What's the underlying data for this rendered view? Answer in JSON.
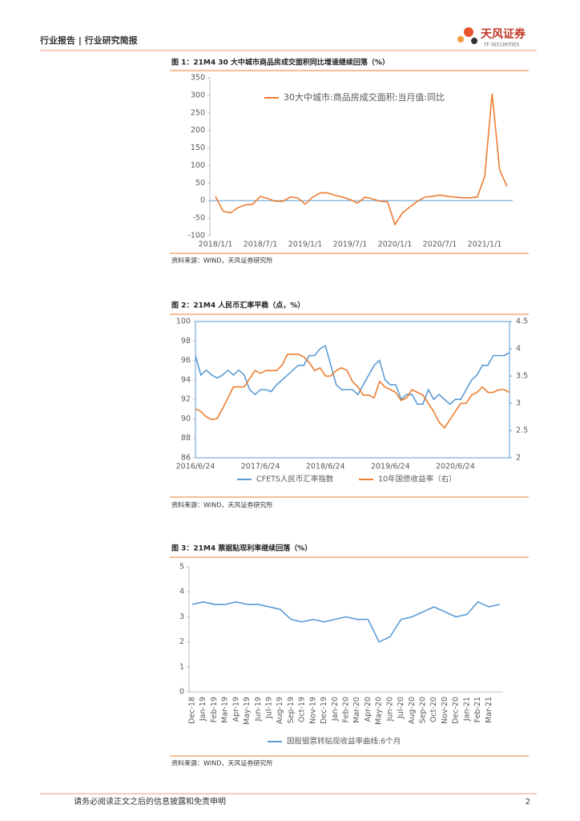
{
  "header": {
    "section": "行业报告 | 行业研究简报",
    "logo": "天风证券",
    "logo_en": "TF SECURITIES"
  },
  "footer": {
    "disclaimer": "请务必阅读正文之后的信息披露和免责申明",
    "page": "2"
  },
  "chart_data": [
    {
      "type": "line",
      "title": "图 1：21M4 30 大中城市商品房成交面积同比增速继续回落（%）",
      "source": "资料来源：WIND，天风证券研究所",
      "x": [
        "2018/1/1",
        "2018/2/1",
        "2018/3/1",
        "2018/4/1",
        "2018/5/1",
        "2018/6/1",
        "2018/7/1",
        "2018/8/1",
        "2018/9/1",
        "2018/10/1",
        "2018/11/1",
        "2018/12/1",
        "2019/1/1",
        "2019/2/1",
        "2019/3/1",
        "2019/4/1",
        "2019/5/1",
        "2019/6/1",
        "2019/7/1",
        "2019/8/1",
        "2019/9/1",
        "2019/10/1",
        "2019/11/1",
        "2019/12/1",
        "2020/1/1",
        "2020/2/1",
        "2020/3/1",
        "2020/4/1",
        "2020/5/1",
        "2020/6/1",
        "2020/7/1",
        "2020/8/1",
        "2020/9/1",
        "2020/10/1",
        "2020/11/1",
        "2020/12/1",
        "2021/1/1",
        "2021/2/1",
        "2021/3/1",
        "2021/4/1"
      ],
      "xticks": [
        "2018/1/1",
        "2018/7/1",
        "2019/1/1",
        "2019/7/1",
        "2020/1/1",
        "2020/7/1",
        "2021/1/1"
      ],
      "series": [
        {
          "name": "30大中城市:商品房成交面积:当月值:同比",
          "color": "#ed7d31",
          "values": [
            12,
            -30,
            -35,
            -20,
            -12,
            -10,
            12,
            6,
            -2,
            -2,
            10,
            8,
            -10,
            10,
            22,
            22,
            15,
            10,
            3,
            -7,
            10,
            5,
            -2,
            -3,
            -68,
            -35,
            -18,
            -2,
            10,
            12,
            16,
            12,
            10,
            8,
            8,
            10,
            68,
            305,
            88,
            40
          ]
        }
      ],
      "ylim": [
        -100,
        350
      ],
      "yticks": [
        -100,
        -50,
        0,
        50,
        100,
        150,
        200,
        250,
        300,
        350
      ],
      "legend": "top"
    },
    {
      "type": "line",
      "title": "图 2：21M4 人民币汇率平稳（点，%）",
      "source": "资料来源：WIND，天风证券研究所",
      "x": [
        "2016/6/24",
        "2016/7/24",
        "2016/8/24",
        "2016/9/24",
        "2016/10/24",
        "2016/11/24",
        "2016/12/24",
        "2017/1/24",
        "2017/2/24",
        "2017/3/24",
        "2017/4/24",
        "2017/5/24",
        "2017/6/24",
        "2017/7/24",
        "2017/8/24",
        "2017/9/24",
        "2017/10/24",
        "2017/11/24",
        "2017/12/24",
        "2018/1/24",
        "2018/2/24",
        "2018/3/24",
        "2018/4/24",
        "2018/5/24",
        "2018/6/24",
        "2018/7/24",
        "2018/8/24",
        "2018/9/24",
        "2018/10/24",
        "2018/11/24",
        "2018/12/24",
        "2019/1/24",
        "2019/2/24",
        "2019/3/24",
        "2019/4/24",
        "2019/5/24",
        "2019/6/24",
        "2019/7/24",
        "2019/8/24",
        "2019/9/24",
        "2019/10/24",
        "2019/11/24",
        "2019/12/24",
        "2020/1/24",
        "2020/2/24",
        "2020/3/24",
        "2020/4/24",
        "2020/5/24",
        "2020/6/24",
        "2020/7/24",
        "2020/8/24",
        "2020/9/24",
        "2020/10/24",
        "2020/11/24",
        "2020/12/24",
        "2021/1/24",
        "2021/2/24",
        "2021/3/24",
        "2021/4/24"
      ],
      "xticks": [
        "2016/6/24",
        "2017/6/24",
        "2018/6/24",
        "2019/6/24",
        "2020/6/24"
      ],
      "series": [
        {
          "name": "CFETS人民币汇率指数",
          "color": "#5b9bd5",
          "values": [
            96.5,
            94.5,
            95,
            94.5,
            94.2,
            94.5,
            95,
            94.5,
            95,
            94.5,
            93,
            92.5,
            93,
            93,
            92.8,
            93.5,
            94,
            94.5,
            95,
            95.5,
            95.5,
            96.5,
            96.5,
            97.2,
            97.5,
            95.5,
            93.5,
            93,
            93,
            93,
            92.5,
            93.5,
            94.5,
            95.5,
            96,
            94,
            93.5,
            93.5,
            92,
            92.5,
            92.5,
            91.5,
            91.5,
            93,
            92,
            92.5,
            92,
            91.5,
            92,
            92,
            93,
            94,
            94.5,
            95.5,
            95.5,
            96.5,
            96.5,
            96.5,
            96.8
          ]
        },
        {
          "name": "10年国债收益率（右）",
          "color": "#ed7d31",
          "axis": "y2",
          "values": [
            2.9,
            2.85,
            2.75,
            2.7,
            2.72,
            2.9,
            3.1,
            3.3,
            3.3,
            3.3,
            3.45,
            3.6,
            3.55,
            3.6,
            3.6,
            3.6,
            3.7,
            3.9,
            3.9,
            3.9,
            3.85,
            3.75,
            3.6,
            3.65,
            3.5,
            3.5,
            3.6,
            3.65,
            3.6,
            3.4,
            3.3,
            3.15,
            3.15,
            3.1,
            3.4,
            3.3,
            3.25,
            3.2,
            3.05,
            3.1,
            3.25,
            3.2,
            3.15,
            3.0,
            2.85,
            2.65,
            2.55,
            2.7,
            2.85,
            3.0,
            3.0,
            3.15,
            3.2,
            3.3,
            3.2,
            3.2,
            3.25,
            3.25,
            3.2
          ]
        }
      ],
      "ylim": [
        86,
        100
      ],
      "yticks": [
        86,
        88,
        90,
        92,
        94,
        96,
        98,
        100
      ],
      "y2lim": [
        2,
        4.5
      ],
      "y2ticks": [
        2,
        2.5,
        3,
        3.5,
        4,
        4.5
      ],
      "legend": "bottom"
    },
    {
      "type": "line",
      "title": "图 3：21M4 票据贴现利率继续回落（%）",
      "source": "资料来源：WIND，天风证券研究所",
      "x": [
        "Dec-18",
        "Jan-19",
        "Feb-19",
        "Mar-19",
        "Apr-19",
        "May-19",
        "Jun-19",
        "Jul-19",
        "Aug-19",
        "Sep-19",
        "Oct-19",
        "Nov-19",
        "Dec-19",
        "Jan-20",
        "Feb-20",
        "Mar-20",
        "Apr-20",
        "May-20",
        "Jun-20",
        "Jul-20",
        "Aug-20",
        "Sep-20",
        "Oct-20",
        "Nov-20",
        "Dec-20",
        "Jan-21",
        "Feb-21",
        "Mar-21",
        null
      ],
      "series": [
        {
          "name": "国股银票转贴现收益率曲线:6个月",
          "color": "#5b9bd5",
          "values": [
            3.5,
            3.6,
            3.5,
            3.5,
            3.6,
            3.5,
            3.5,
            3.4,
            3.3,
            2.9,
            2.8,
            2.9,
            2.8,
            2.9,
            3.0,
            2.9,
            2.9,
            2.0,
            2.2,
            2.9,
            3.0,
            3.2,
            3.4,
            3.2,
            3.0,
            3.1,
            3.6,
            3.4,
            3.5
          ]
        }
      ],
      "ylim": [
        0,
        5
      ],
      "yticks": [
        0,
        1,
        2,
        3,
        4,
        5
      ],
      "legend": "bottom"
    }
  ]
}
